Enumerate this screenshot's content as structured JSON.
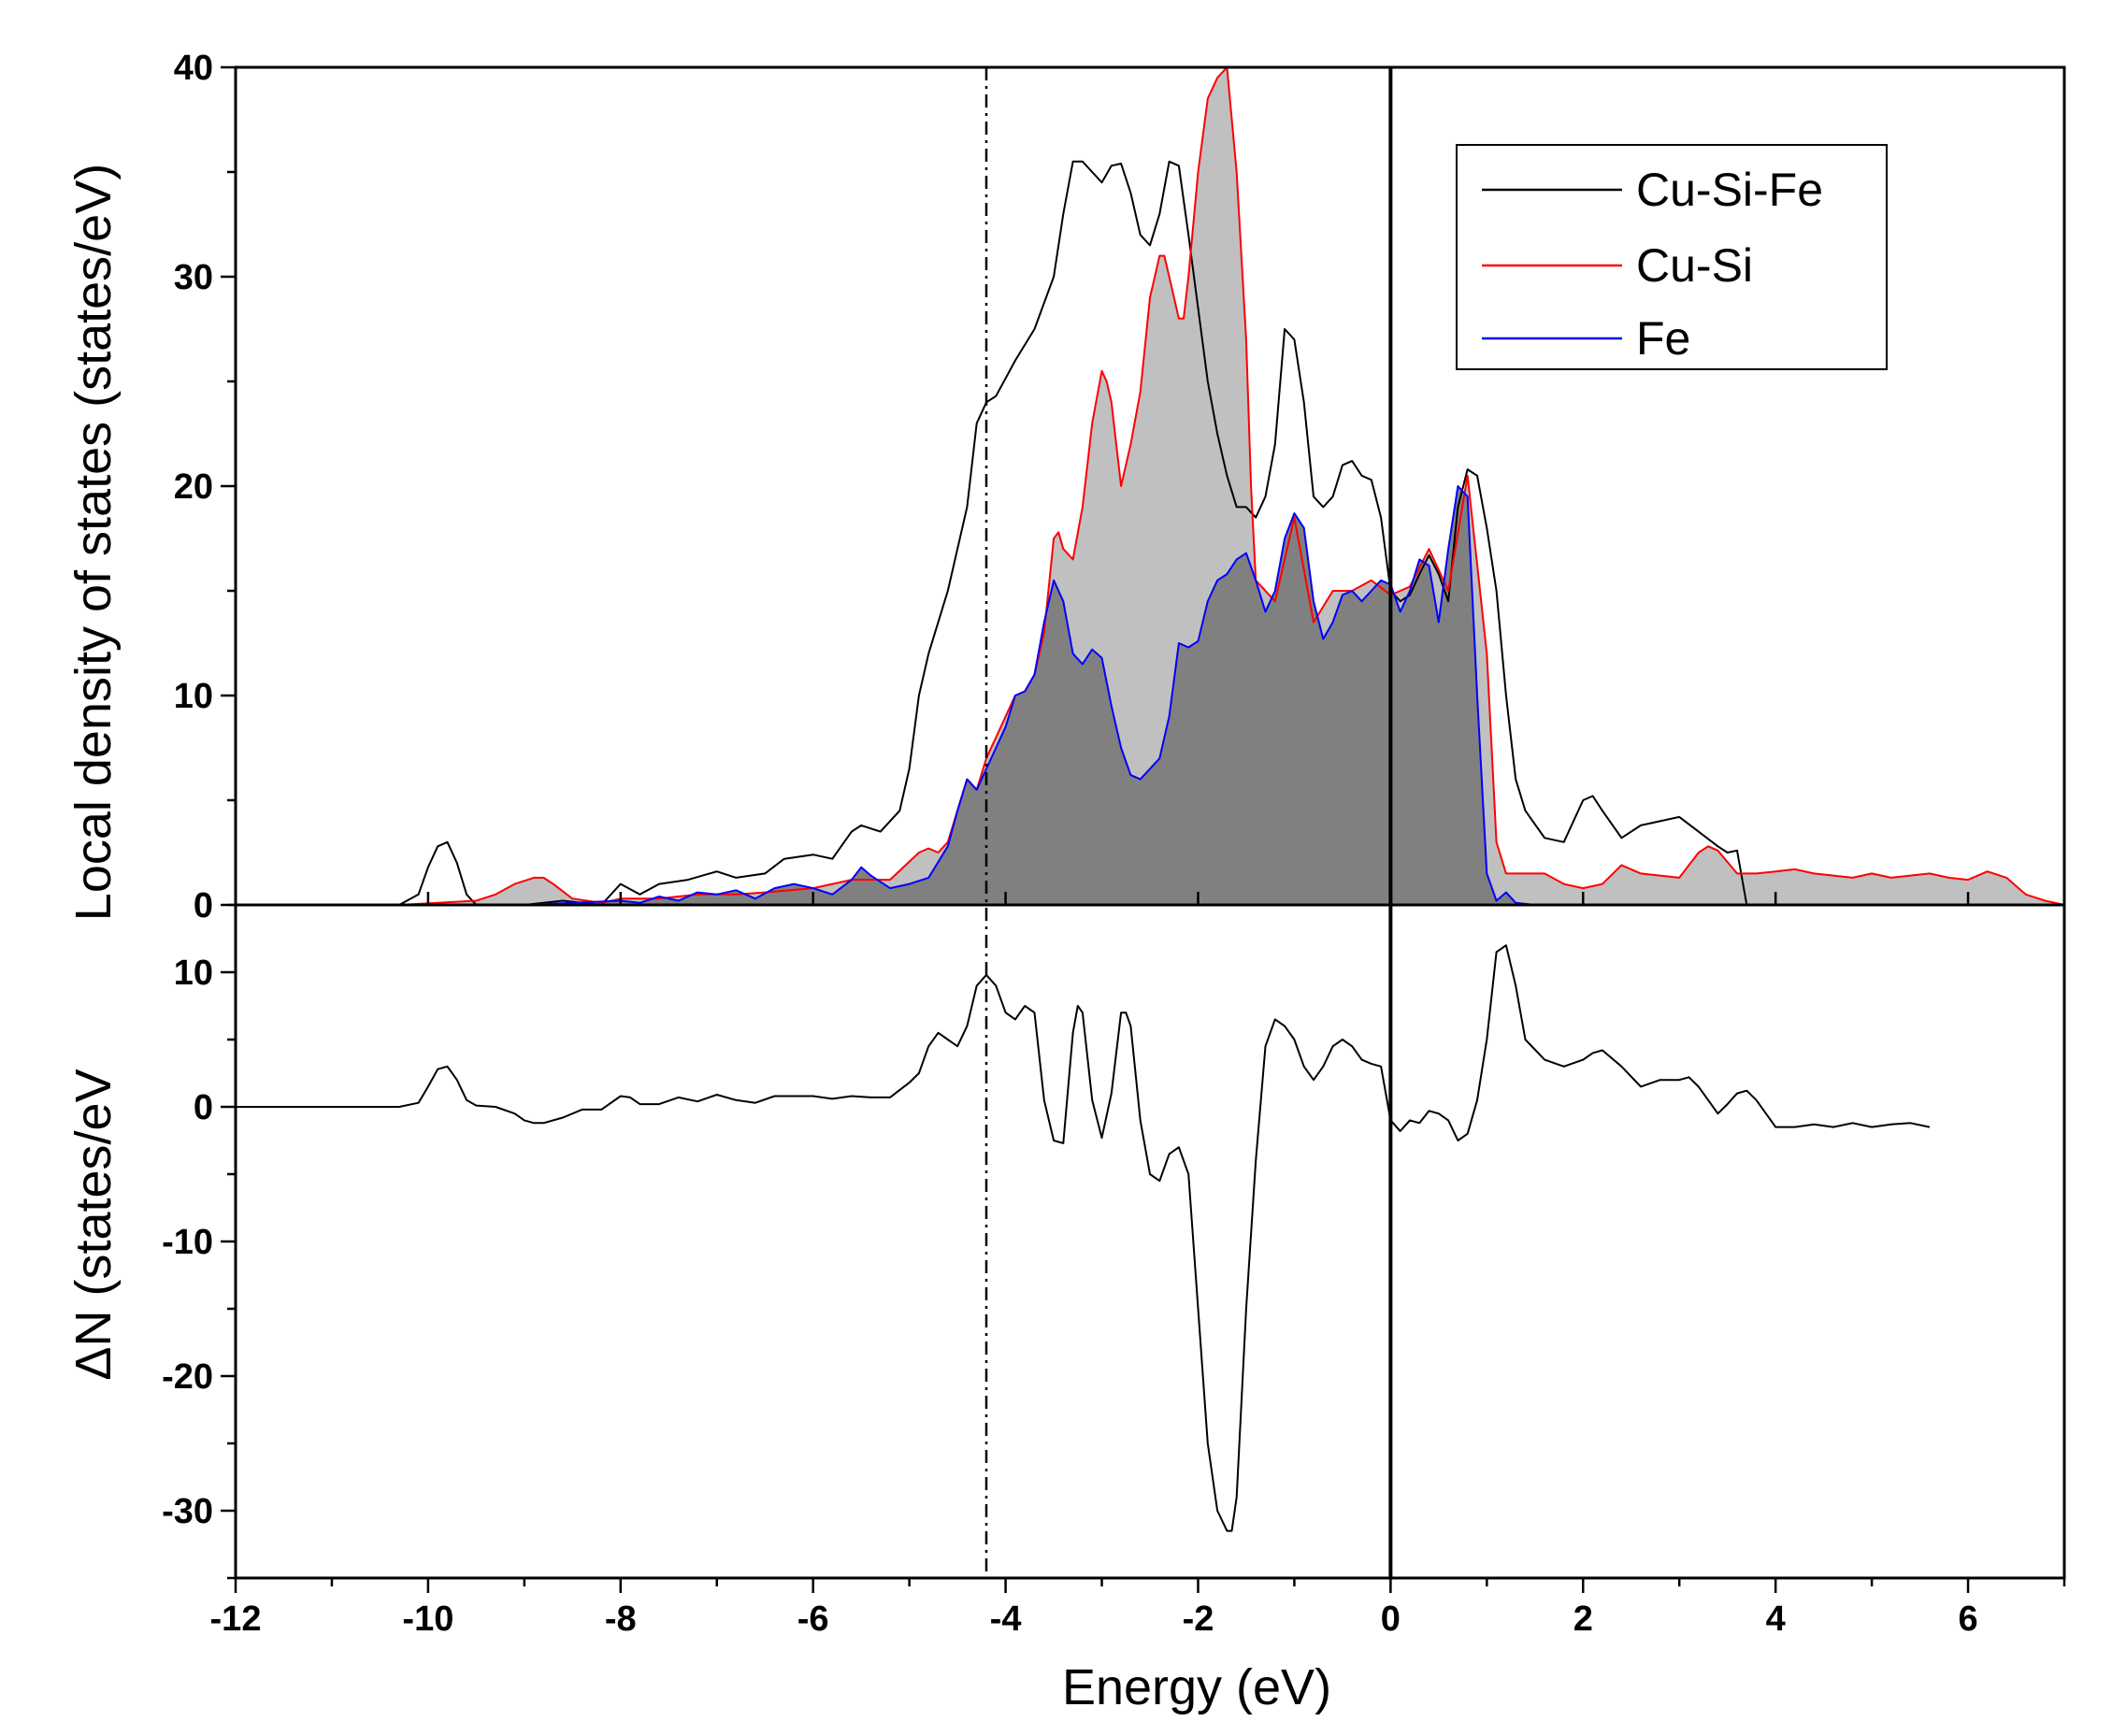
{
  "chart_data": {
    "type": "line",
    "colors": {
      "cu_si_fe": "#000000",
      "cu_si": "#ff0000",
      "fe": "#0000ff",
      "cu_si_fill": "#c0c0c0",
      "fe_fill": "#808080"
    },
    "xlabel": "Energy (eV)",
    "xlim": [
      -12,
      7
    ],
    "xticks": [
      -12,
      -10,
      -8,
      -6,
      -4,
      -2,
      0,
      2,
      4,
      6
    ],
    "xtick_labels": [
      "-12",
      "-10",
      "-8",
      "-6",
      "-4",
      "-2",
      "0",
      "2",
      "4",
      "6"
    ],
    "reference_lines": [
      {
        "x": -4.2,
        "style": "dash-dot"
      },
      {
        "x": 0,
        "style": "solid"
      }
    ],
    "top_panel": {
      "ylabel": "Local density of states (states/eV)",
      "ylim": [
        0,
        40
      ],
      "yticks": [
        0,
        10,
        20,
        30,
        40
      ],
      "ytick_labels": [
        "0",
        "10",
        "20",
        "30",
        "40"
      ],
      "legend": {
        "placement": "top-right",
        "entries": [
          {
            "label": "Cu-Si-Fe",
            "color": "#000000"
          },
          {
            "label": "Cu-Si",
            "color": "#ff0000"
          },
          {
            "label": "Fe",
            "color": "#0000ff"
          }
        ]
      },
      "series": [
        {
          "name": "Cu-Si-Fe",
          "color": "#000000",
          "filled": false,
          "x": [
            -12.0,
            -10.3,
            -10.1,
            -10.0,
            -9.9,
            -9.8,
            -9.7,
            -9.6,
            -9.5,
            -9.3,
            -9.0,
            -8.6,
            -8.2,
            -8.0,
            -7.8,
            -7.6,
            -7.3,
            -7.0,
            -6.8,
            -6.5,
            -6.3,
            -6.0,
            -5.8,
            -5.6,
            -5.5,
            -5.3,
            -5.1,
            -5.0,
            -4.9,
            -4.8,
            -4.6,
            -4.4,
            -4.3,
            -4.2,
            -4.1,
            -3.9,
            -3.7,
            -3.5,
            -3.4,
            -3.3,
            -3.2,
            -3.1,
            -3.0,
            -2.9,
            -2.8,
            -2.7,
            -2.6,
            -2.5,
            -2.4,
            -2.3,
            -2.2,
            -2.1,
            -2.0,
            -1.9,
            -1.8,
            -1.7,
            -1.6,
            -1.5,
            -1.4,
            -1.3,
            -1.2,
            -1.1,
            -1.0,
            -0.9,
            -0.8,
            -0.7,
            -0.6,
            -0.5,
            -0.4,
            -0.3,
            -0.2,
            -0.1,
            0.0,
            0.1,
            0.2,
            0.3,
            0.4,
            0.5,
            0.6,
            0.7,
            0.8,
            0.9,
            1.0,
            1.1,
            1.2,
            1.3,
            1.4,
            1.6,
            1.8,
            2.0,
            2.1,
            2.2,
            2.4,
            2.6,
            2.8,
            3.0,
            3.2,
            3.4,
            3.5,
            3.6,
            3.7
          ],
          "y": [
            0,
            0,
            0.5,
            1.8,
            2.8,
            3.0,
            2.0,
            0.5,
            0,
            0,
            0,
            0.2,
            0,
            1.0,
            0.5,
            1.0,
            1.2,
            1.6,
            1.3,
            1.5,
            2.2,
            2.4,
            2.2,
            3.5,
            3.8,
            3.5,
            4.5,
            6.5,
            10.0,
            12.0,
            15.0,
            19.0,
            23.0,
            24.0,
            24.3,
            26.0,
            27.5,
            30.0,
            33.0,
            35.5,
            35.5,
            35.0,
            34.5,
            35.3,
            35.4,
            34.0,
            32.0,
            31.5,
            33.0,
            35.5,
            35.3,
            32.0,
            28.5,
            25.0,
            22.5,
            20.5,
            19.0,
            19.0,
            18.5,
            19.5,
            22.0,
            27.5,
            27.0,
            24.0,
            19.5,
            19.0,
            19.5,
            21.0,
            21.2,
            20.5,
            20.3,
            18.5,
            15.0,
            14.5,
            14.8,
            15.8,
            16.7,
            15.8,
            14.5,
            19.0,
            20.8,
            20.5,
            18.0,
            15.0,
            10.0,
            6.0,
            4.5,
            3.2,
            3.0,
            5.0,
            5.2,
            4.5,
            3.2,
            3.8,
            4.0,
            4.2,
            3.5,
            2.8,
            2.5,
            2.6,
            0
          ]
        },
        {
          "name": "Cu-Si",
          "color": "#ff0000",
          "filled": true,
          "fill_color": "#c0c0c0",
          "x": [
            -11.3,
            -10.3,
            -9.5,
            -9.3,
            -9.1,
            -8.9,
            -8.8,
            -8.7,
            -8.5,
            -8.2,
            -8.0,
            -7.6,
            -7.2,
            -6.8,
            -6.5,
            -6.0,
            -5.6,
            -5.2,
            -4.9,
            -4.8,
            -4.7,
            -4.6,
            -4.5,
            -4.4,
            -4.3,
            -4.2,
            -4.1,
            -4.0,
            -3.9,
            -3.8,
            -3.7,
            -3.6,
            -3.5,
            -3.45,
            -3.4,
            -3.3,
            -3.2,
            -3.1,
            -3.0,
            -2.95,
            -2.9,
            -2.8,
            -2.7,
            -2.6,
            -2.5,
            -2.4,
            -2.35,
            -2.3,
            -2.2,
            -2.15,
            -2.1,
            -2.0,
            -1.9,
            -1.8,
            -1.7,
            -1.6,
            -1.5,
            -1.45,
            -1.4,
            -1.2,
            -1.0,
            -0.8,
            -0.6,
            -0.4,
            -0.2,
            0.0,
            0.2,
            0.4,
            0.6,
            0.8,
            1.0,
            1.1,
            1.2,
            1.4,
            1.6,
            1.8,
            2.0,
            2.2,
            2.4,
            2.6,
            2.8,
            3.0,
            3.2,
            3.3,
            3.4,
            3.6,
            3.8,
            4.0,
            4.2,
            4.4,
            4.6,
            4.8,
            5.0,
            5.2,
            5.4,
            5.6,
            5.8,
            6.0,
            6.2,
            6.4,
            6.6,
            6.8,
            7.0
          ],
          "y": [
            0,
            0,
            0.2,
            0.5,
            1.0,
            1.3,
            1.3,
            1.0,
            0.3,
            0.1,
            0.3,
            0.3,
            0.5,
            0.5,
            0.6,
            0.8,
            1.2,
            1.2,
            2.5,
            2.7,
            2.5,
            3.0,
            4.5,
            6.0,
            5.5,
            7.0,
            8.0,
            9.0,
            10.0,
            10.2,
            11.0,
            13.0,
            17.5,
            17.8,
            17.0,
            16.5,
            19.0,
            23.0,
            25.5,
            25.0,
            24.0,
            20.0,
            22.0,
            24.5,
            29.0,
            31.0,
            31.0,
            30.0,
            28.0,
            28.0,
            30.0,
            35.0,
            38.5,
            39.5,
            40.0,
            35.0,
            27.0,
            20.0,
            15.5,
            14.5,
            18.5,
            13.5,
            15.0,
            15.0,
            15.5,
            14.8,
            15.2,
            17.0,
            15.0,
            20.5,
            12.0,
            3.0,
            1.5,
            1.5,
            1.5,
            1.0,
            0.8,
            1.0,
            1.9,
            1.5,
            1.4,
            1.3,
            2.5,
            2.8,
            2.6,
            1.5,
            1.5,
            1.6,
            1.7,
            1.5,
            1.4,
            1.3,
            1.5,
            1.3,
            1.4,
            1.5,
            1.3,
            1.2,
            1.6,
            1.3,
            0.5,
            0.2,
            0
          ]
        },
        {
          "name": "Fe",
          "color": "#0000ff",
          "filled": true,
          "fill_color": "#808080",
          "x": [
            -10.3,
            -9.0,
            -8.5,
            -8.0,
            -7.8,
            -7.6,
            -7.4,
            -7.2,
            -7.0,
            -6.8,
            -6.6,
            -6.4,
            -6.2,
            -6.0,
            -5.8,
            -5.6,
            -5.5,
            -5.4,
            -5.2,
            -5.0,
            -4.8,
            -4.6,
            -4.5,
            -4.4,
            -4.3,
            -4.2,
            -4.1,
            -4.0,
            -3.9,
            -3.8,
            -3.7,
            -3.6,
            -3.5,
            -3.4,
            -3.3,
            -3.2,
            -3.1,
            -3.0,
            -2.9,
            -2.8,
            -2.7,
            -2.6,
            -2.5,
            -2.4,
            -2.3,
            -2.2,
            -2.1,
            -2.0,
            -1.9,
            -1.8,
            -1.7,
            -1.6,
            -1.5,
            -1.4,
            -1.3,
            -1.2,
            -1.1,
            -1.0,
            -0.9,
            -0.8,
            -0.7,
            -0.6,
            -0.5,
            -0.4,
            -0.3,
            -0.2,
            -0.1,
            0.0,
            0.1,
            0.2,
            0.3,
            0.4,
            0.5,
            0.6,
            0.7,
            0.8,
            0.9,
            1.0,
            1.1,
            1.2,
            1.3,
            1.5,
            3.0
          ],
          "y": [
            0,
            0,
            0.1,
            0.2,
            0.1,
            0.4,
            0.2,
            0.6,
            0.5,
            0.7,
            0.3,
            0.8,
            1.0,
            0.8,
            0.5,
            1.2,
            1.8,
            1.4,
            0.8,
            1.0,
            1.3,
            2.8,
            4.5,
            6.0,
            5.5,
            6.5,
            7.5,
            8.5,
            10.0,
            10.2,
            11.0,
            13.5,
            15.5,
            14.5,
            12.0,
            11.5,
            12.2,
            11.8,
            9.5,
            7.5,
            6.2,
            6.0,
            6.5,
            7.0,
            9.0,
            12.5,
            12.3,
            12.6,
            14.5,
            15.5,
            15.8,
            16.5,
            16.8,
            15.5,
            14.0,
            15.0,
            17.5,
            18.7,
            18.0,
            14.5,
            12.7,
            13.5,
            14.8,
            15.0,
            14.5,
            15.0,
            15.5,
            15.3,
            14.0,
            15.0,
            16.5,
            16.2,
            13.5,
            17.0,
            20.0,
            19.5,
            10.0,
            1.5,
            0.2,
            0.6,
            0.1,
            0,
            0
          ]
        }
      ]
    },
    "bottom_panel": {
      "ylabel": "ΔN (states/eV",
      "ylim": [
        -35,
        15
      ],
      "yticks": [
        -30,
        -20,
        -10,
        0,
        10
      ],
      "ytick_labels": [
        "-30",
        "-20",
        "-10",
        "0",
        "10"
      ],
      "series": [
        {
          "name": "ΔN",
          "color": "#000000",
          "x": [
            -12.0,
            -10.3,
            -10.1,
            -10.0,
            -9.9,
            -9.8,
            -9.7,
            -9.6,
            -9.5,
            -9.3,
            -9.1,
            -9.0,
            -8.9,
            -8.8,
            -8.6,
            -8.4,
            -8.2,
            -8.0,
            -7.9,
            -7.8,
            -7.6,
            -7.4,
            -7.2,
            -7.0,
            -6.8,
            -6.6,
            -6.4,
            -6.2,
            -6.0,
            -5.8,
            -5.6,
            -5.4,
            -5.2,
            -5.0,
            -4.9,
            -4.8,
            -4.7,
            -4.6,
            -4.5,
            -4.4,
            -4.3,
            -4.2,
            -4.1,
            -4.0,
            -3.9,
            -3.8,
            -3.7,
            -3.6,
            -3.5,
            -3.4,
            -3.3,
            -3.25,
            -3.2,
            -3.1,
            -3.0,
            -2.9,
            -2.8,
            -2.75,
            -2.7,
            -2.6,
            -2.5,
            -2.4,
            -2.3,
            -2.2,
            -2.1,
            -2.0,
            -1.9,
            -1.8,
            -1.7,
            -1.65,
            -1.6,
            -1.5,
            -1.4,
            -1.3,
            -1.2,
            -1.1,
            -1.0,
            -0.9,
            -0.8,
            -0.7,
            -0.6,
            -0.5,
            -0.4,
            -0.3,
            -0.2,
            -0.1,
            0.0,
            0.1,
            0.2,
            0.3,
            0.4,
            0.5,
            0.6,
            0.7,
            0.8,
            0.9,
            1.0,
            1.1,
            1.2,
            1.3,
            1.4,
            1.6,
            1.8,
            2.0,
            2.1,
            2.2,
            2.4,
            2.6,
            2.8,
            3.0,
            3.1,
            3.2,
            3.3,
            3.4,
            3.5,
            3.6,
            3.7,
            3.8,
            4.0,
            4.2,
            4.4,
            4.6,
            4.8,
            5.0,
            5.2,
            5.4,
            5.6
          ],
          "y": [
            0,
            0,
            0.3,
            1.5,
            2.8,
            3.0,
            2.0,
            0.5,
            0.1,
            0,
            -0.5,
            -1.0,
            -1.2,
            -1.2,
            -0.8,
            -0.2,
            -0.2,
            0.8,
            0.7,
            0.2,
            0.2,
            0.7,
            0.4,
            0.9,
            0.5,
            0.3,
            0.8,
            0.8,
            0.8,
            0.6,
            0.8,
            0.7,
            0.7,
            1.8,
            2.5,
            4.5,
            5.5,
            5.0,
            4.5,
            6.0,
            9.0,
            9.8,
            9.0,
            7.0,
            6.5,
            7.5,
            7.0,
            0.5,
            -2.5,
            -2.7,
            5.5,
            7.5,
            7.0,
            0.5,
            -2.3,
            1.0,
            7.0,
            7.0,
            6.0,
            -1.0,
            -5.0,
            -5.5,
            -3.5,
            -3.0,
            -5.0,
            -15.0,
            -25.0,
            -30.0,
            -31.5,
            -31.5,
            -29.0,
            -15.0,
            -4.0,
            4.5,
            6.5,
            6.0,
            5.0,
            3.0,
            2.0,
            3.0,
            4.5,
            5.0,
            4.5,
            3.5,
            3.2,
            3.0,
            -1.0,
            -1.8,
            -1.0,
            -1.2,
            -0.3,
            -0.5,
            -1.0,
            -2.5,
            -2.0,
            0.5,
            5.0,
            11.5,
            12.0,
            9.0,
            5.0,
            3.5,
            3.0,
            3.5,
            4.0,
            4.2,
            3.0,
            1.5,
            2.0,
            2.0,
            2.2,
            1.5,
            0.5,
            -0.5,
            0.2,
            1.0,
            1.2,
            0.5,
            -1.5,
            -1.5,
            -1.3,
            -1.5,
            -1.2,
            -1.5,
            -1.3,
            -1.2,
            -1.5
          ]
        }
      ]
    }
  }
}
